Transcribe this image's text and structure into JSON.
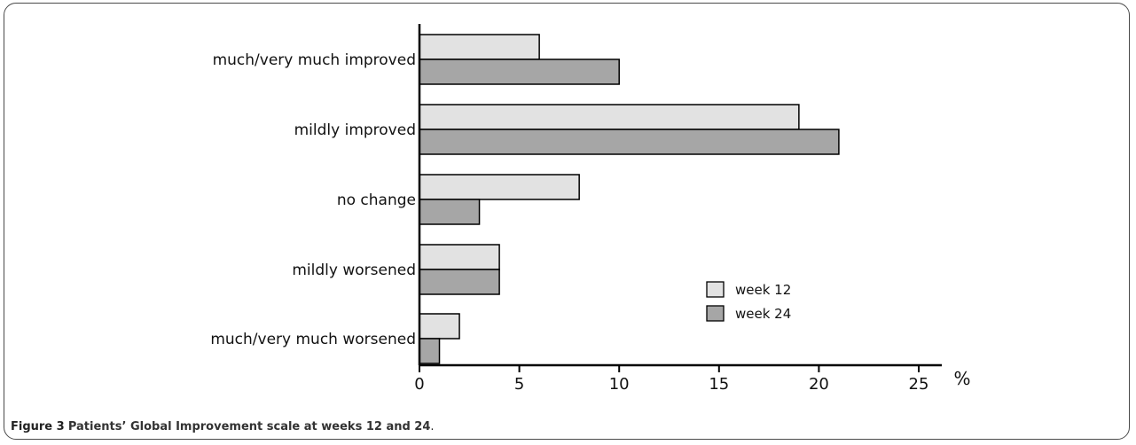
{
  "chart_data": {
    "type": "bar",
    "orientation": "horizontal",
    "categories": [
      "much/very much improved",
      "mildly improved",
      "no change",
      "mildly worsened",
      "much/very much worsened"
    ],
    "series": [
      {
        "name": "week 12",
        "values": [
          6,
          19,
          8,
          4,
          2
        ],
        "color": "#e2e2e2"
      },
      {
        "name": "week 24",
        "values": [
          10,
          21,
          3,
          4,
          1
        ],
        "color": "#a6a6a6"
      }
    ],
    "xlim": [
      0,
      25
    ],
    "xticks": [
      "0",
      "5",
      "10",
      "15",
      "20",
      "25"
    ],
    "xunit": "%",
    "legend_position": "right",
    "grid": false
  },
  "caption": {
    "lead": "Figure 3",
    "title": "Patients’ Global Improvement scale at weeks 12 and 24",
    "end": "."
  }
}
